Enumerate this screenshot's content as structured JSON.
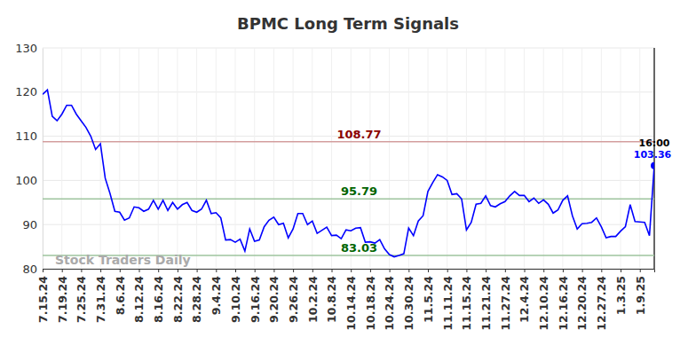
{
  "chart_data": {
    "type": "line",
    "title": "BPMC Long Term Signals",
    "categories": [
      "7.15.24",
      null,
      null,
      null,
      "7.19.24",
      null,
      null,
      null,
      "7.25.24",
      null,
      null,
      null,
      "7.31.24",
      null,
      null,
      null,
      "8.6.24",
      null,
      null,
      null,
      "8.12.24",
      null,
      null,
      null,
      "8.16.24",
      null,
      null,
      null,
      "8.22.24",
      null,
      null,
      null,
      "8.28.24",
      null,
      null,
      null,
      "9.4.24",
      null,
      null,
      null,
      "9.10.24",
      null,
      null,
      null,
      "9.16.24",
      null,
      null,
      null,
      "9.20.24",
      null,
      null,
      null,
      "9.26.24",
      null,
      null,
      null,
      "10.2.24",
      null,
      null,
      null,
      "10.8.24",
      null,
      null,
      null,
      "10.14.24",
      null,
      null,
      null,
      "10.18.24",
      null,
      null,
      null,
      "10.24.24",
      null,
      null,
      null,
      "10.30.24",
      null,
      null,
      null,
      "11.5.24",
      null,
      null,
      null,
      "11.11.24",
      null,
      null,
      null,
      "11.15.24",
      null,
      null,
      null,
      "11.21.24",
      null,
      null,
      null,
      "11.27.24",
      null,
      null,
      null,
      "12.4.24",
      null,
      null,
      null,
      "12.10.24",
      null,
      null,
      null,
      "12.16.24",
      null,
      null,
      null,
      "12.20.24",
      null,
      null,
      null,
      "12.27.24",
      null,
      null,
      null,
      "1.3.25",
      null,
      null,
      null,
      "1.9.25",
      null,
      null,
      null
    ],
    "series": [
      {
        "name": "BPMC",
        "color": "#0000ff",
        "values": [
          119.5,
          120.5,
          114.5,
          113.5,
          115,
          117,
          117,
          115,
          113.5,
          112,
          110,
          107,
          108.3,
          100.5,
          97,
          93,
          92.8,
          91,
          91.5,
          94,
          93.8,
          93,
          93.5,
          95.5,
          93.5,
          95.5,
          93.2,
          95,
          93.5,
          94.5,
          95,
          93.2,
          92.8,
          93.5,
          95.5,
          92.5,
          92.7,
          91.5,
          86.5,
          86.6,
          86,
          86.7,
          84,
          89,
          86.2,
          86.5,
          89.5,
          91,
          91.7,
          90,
          90.3,
          87,
          89,
          92.5,
          92.5,
          90,
          90.8,
          88,
          88.7,
          89.4,
          87.5,
          87.6,
          86.8,
          88.8,
          88.6,
          89.2,
          89.3,
          86,
          86.1,
          85.8,
          86.6,
          84.5,
          83.2,
          82.7,
          83,
          83.4,
          89.2,
          87.5,
          90.8,
          92,
          97.5,
          99.5,
          101.3,
          100.8,
          100,
          96.8,
          97,
          95.8,
          88.8,
          90.5,
          94.6,
          94.8,
          96.5,
          94.3,
          94,
          94.7,
          95.2,
          96.5,
          97.5,
          96.6,
          96.6,
          95.2,
          96,
          94.8,
          95.6,
          94.6,
          92.6,
          93.3,
          95.5,
          96.5,
          92,
          89,
          90.2,
          90.3,
          90.5,
          91.5,
          89.5,
          87,
          87.3,
          87.3,
          88.5,
          89.5,
          94.5,
          90.7,
          90.6,
          90.5,
          87.5,
          103.36
        ]
      }
    ],
    "levels": [
      {
        "value": 108.77,
        "color": "#8b0000"
      },
      {
        "value": 95.79,
        "color": "#006400"
      },
      {
        "value": 83.03,
        "color": "#006400"
      }
    ],
    "annotations": [
      {
        "text": "Stock Traders Daily"
      },
      {
        "text": "16:00"
      }
    ],
    "ylim": [
      80,
      130
    ],
    "yticks": [
      80,
      90,
      100,
      110,
      120,
      130
    ],
    "grid": true,
    "marker": "last"
  }
}
